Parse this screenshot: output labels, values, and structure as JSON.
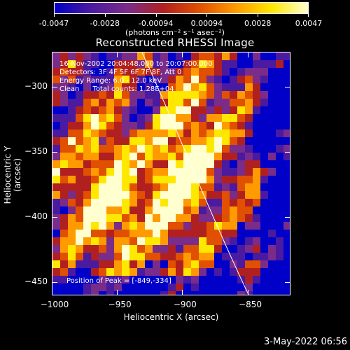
{
  "colorbar": {
    "ticks": [
      "-0.0047",
      "-0.0028",
      "-0.00094",
      "0.00094",
      "0.0028",
      "0.0047"
    ],
    "units": "(photons cm⁻² s⁻¹ asec⁻²)",
    "colors": [
      "#0000c8",
      "#4a1aa0",
      "#7a2c8a",
      "#b02020",
      "#e05000",
      "#ff9a00",
      "#ffe800",
      "#ffffd0"
    ]
  },
  "title": "Reconstructed RHESSI Image",
  "info": {
    "line1": "16-Nov-2002 20:04:48.000 to 20:07:00.000",
    "line2": "Detectors: 3F 4F 5F 6F 7F 8F, Att 0",
    "line3": "Energy Range: 6.0 - 12.0 keV",
    "line4": "Clean      Total counts: 1.28E+04",
    "peak": "Position of Peak = [-849,-334]"
  },
  "axes": {
    "xlabel": "Heliocentric X (arcsec)",
    "ylabel": "Heliocentric Y (arcsec)",
    "xticks": [
      "-1000",
      "-950",
      "-900",
      "-850"
    ],
    "yticks": [
      "-300",
      "-350",
      "-400",
      "-450"
    ],
    "xlim": [
      -1000,
      -817
    ],
    "ylim": [
      -460,
      -273
    ]
  },
  "timestamp": "3-May-2022 06:56"
}
